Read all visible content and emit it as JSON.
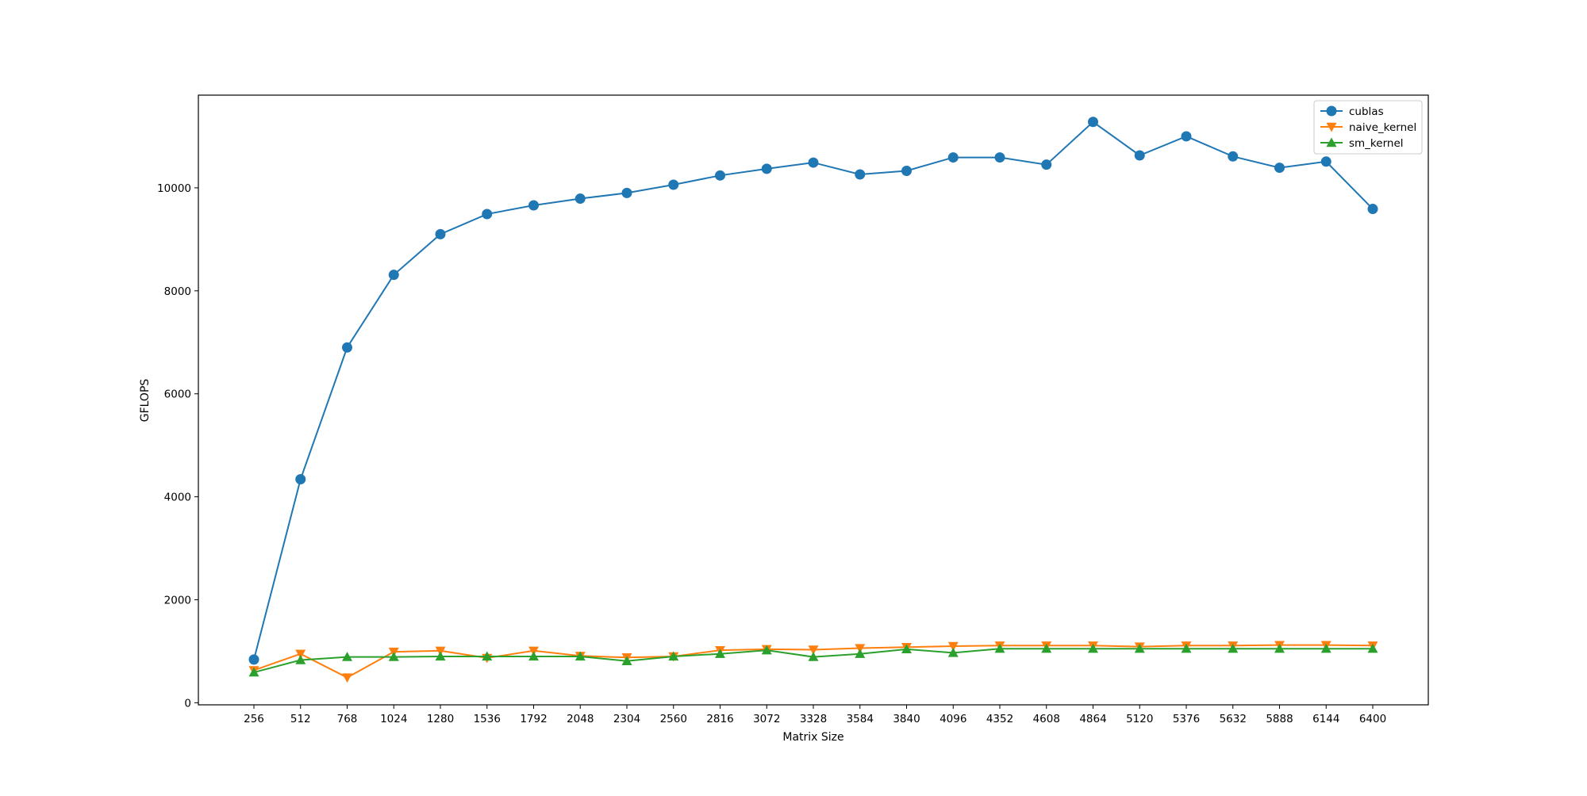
{
  "chart_data": {
    "type": "line",
    "title": "",
    "xlabel": "Matrix Size",
    "ylabel": "GFLOPS",
    "x": [
      256,
      512,
      768,
      1024,
      1280,
      1536,
      1792,
      2048,
      2304,
      2560,
      2816,
      3072,
      3328,
      3584,
      3840,
      4096,
      4352,
      4608,
      4864,
      5120,
      5376,
      5632,
      5888,
      6144,
      6400
    ],
    "xticks": [
      "256",
      "512",
      "768",
      "1024",
      "1280",
      "1536",
      "1792",
      "2048",
      "2304",
      "2560",
      "2816",
      "3072",
      "3328",
      "3584",
      "3840",
      "4096",
      "4352",
      "4608",
      "4864",
      "5120",
      "5376",
      "5632",
      "5888",
      "6144",
      "6400"
    ],
    "yticks": [
      0,
      2000,
      4000,
      6000,
      8000,
      10000
    ],
    "ylim": [
      -40,
      11800
    ],
    "grid": false,
    "legend": "top-right",
    "series": [
      {
        "name": "cublas",
        "color": "#1f77b4",
        "marker": "circle",
        "values": [
          840,
          4340,
          6900,
          8310,
          9100,
          9490,
          9660,
          9790,
          9900,
          10060,
          10240,
          10370,
          10490,
          10260,
          10330,
          10590,
          10590,
          10450,
          11280,
          10630,
          11000,
          10610,
          10390,
          10510,
          9590
        ]
      },
      {
        "name": "naive_kernel",
        "color": "#ff7f0e",
        "marker": "triangle-down",
        "values": [
          630,
          950,
          490,
          990,
          1010,
          870,
          1010,
          910,
          880,
          900,
          1020,
          1040,
          1030,
          1060,
          1080,
          1100,
          1110,
          1110,
          1110,
          1090,
          1110,
          1110,
          1120,
          1120,
          1110
        ]
      },
      {
        "name": "sm_kernel",
        "color": "#2ca02c",
        "marker": "triangle-up",
        "values": [
          590,
          830,
          890,
          890,
          900,
          900,
          900,
          900,
          810,
          900,
          950,
          1020,
          890,
          950,
          1040,
          970,
          1050,
          1050,
          1050,
          1050,
          1050,
          1050,
          1050,
          1050,
          1050
        ]
      }
    ]
  }
}
